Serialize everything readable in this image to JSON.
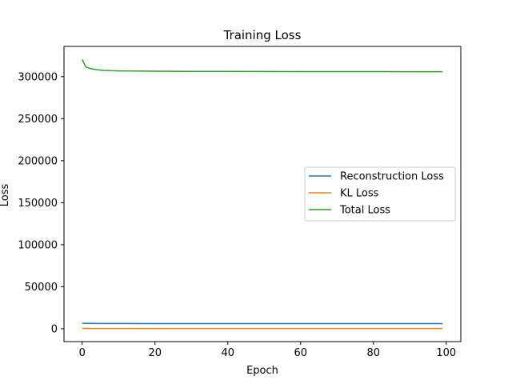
{
  "chart_data": {
    "type": "line",
    "title": "Training Loss",
    "xlabel": "Epoch",
    "ylabel": "Loss",
    "xlim": [
      -5,
      104
    ],
    "ylim": [
      -15300,
      336000
    ],
    "xticks": [
      0,
      20,
      40,
      60,
      80,
      100
    ],
    "yticks": [
      0,
      50000,
      100000,
      150000,
      200000,
      250000,
      300000
    ],
    "grid": false,
    "legend_position": "center-right",
    "series": [
      {
        "name": "Reconstruction Loss",
        "color": "#1f77b4",
        "x": [
          0,
          1,
          2,
          5,
          10,
          20,
          40,
          60,
          80,
          99
        ],
        "y": [
          6500,
          6400,
          6300,
          6250,
          6200,
          6150,
          6100,
          6100,
          6100,
          6100
        ]
      },
      {
        "name": "KL Loss",
        "color": "#ff7f0e",
        "x": [
          0,
          1,
          2,
          5,
          10,
          20,
          40,
          60,
          80,
          99
        ],
        "y": [
          400,
          350,
          330,
          320,
          310,
          300,
          300,
          300,
          300,
          300
        ]
      },
      {
        "name": "Total Loss",
        "color": "#2ca02c",
        "x": [
          0,
          1,
          2,
          3,
          4,
          5,
          6,
          8,
          10,
          15,
          20,
          30,
          40,
          50,
          60,
          70,
          80,
          90,
          99
        ],
        "y": [
          320500,
          311500,
          310000,
          309000,
          308300,
          307800,
          307500,
          307100,
          306900,
          306700,
          306500,
          306300,
          306200,
          306100,
          306050,
          306000,
          305950,
          305900,
          305900
        ]
      }
    ]
  }
}
